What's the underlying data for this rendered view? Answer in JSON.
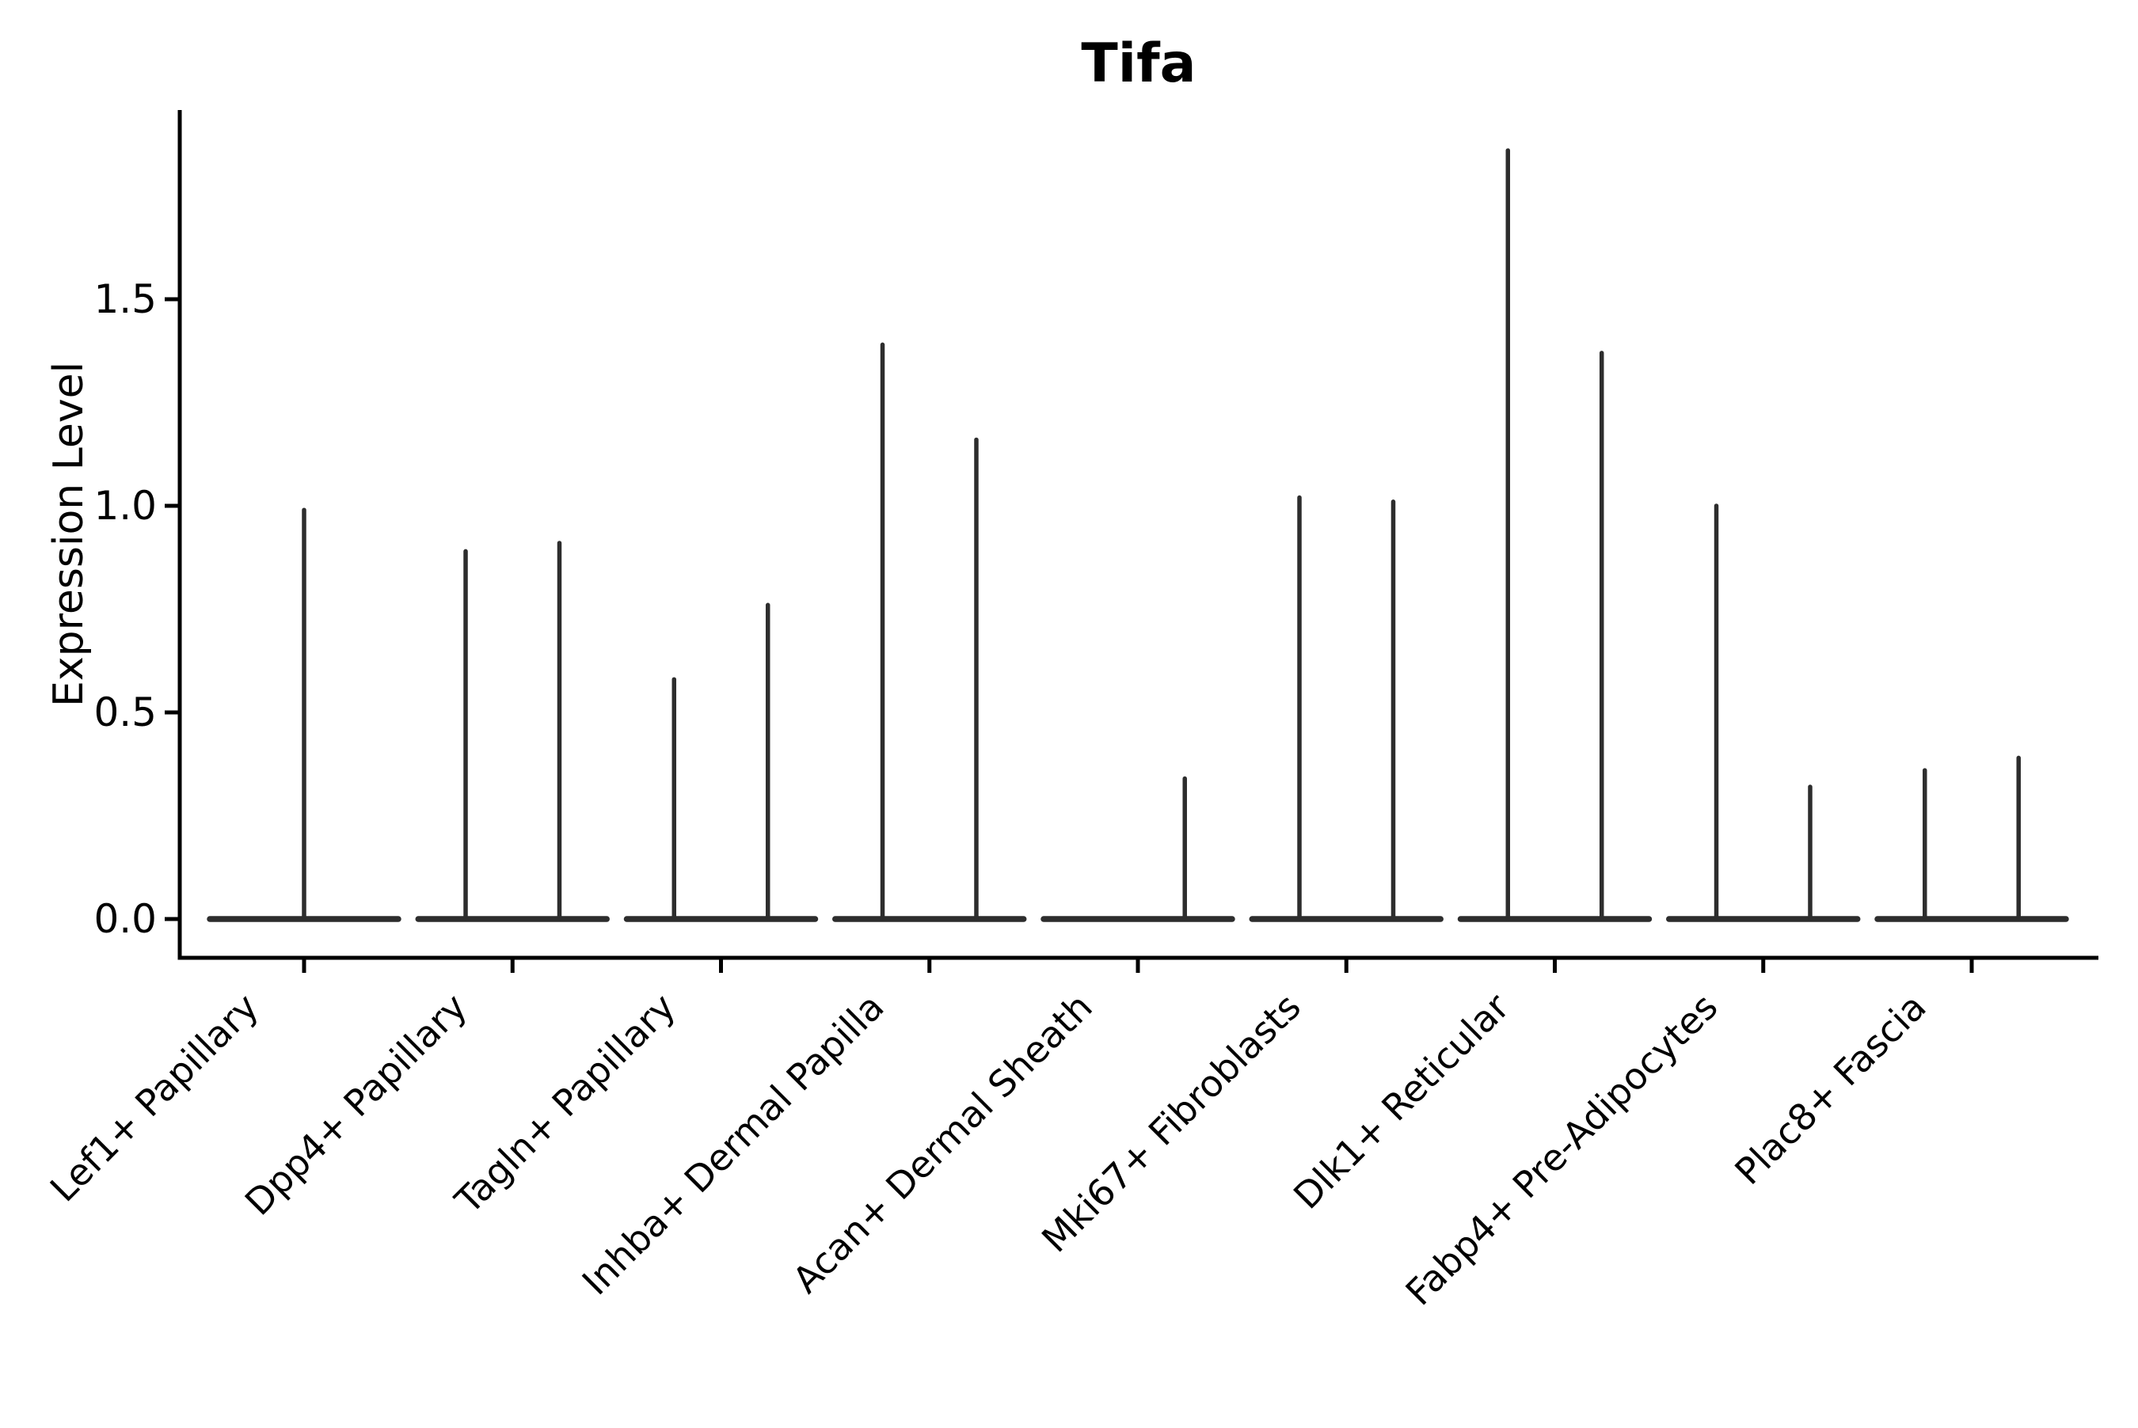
{
  "title": "Tifa",
  "y_axis": {
    "label": "Expression Level",
    "tick_labels": [
      "0.0",
      "0.5",
      "1.0",
      "1.5"
    ],
    "tick_values": [
      0.0,
      0.5,
      1.0,
      1.5
    ]
  },
  "colors": {
    "background": "#ffffff",
    "axis": "#000000",
    "text": "#000000",
    "violin_stroke": "#2d2d2d"
  },
  "chart_data": {
    "type": "violin",
    "title": "Tifa",
    "xlabel": "",
    "ylabel": "Expression Level",
    "ylim": [
      -0.094,
      1.954
    ],
    "yticks": [
      0.0,
      0.5,
      1.0,
      1.5
    ],
    "grid": false,
    "legend": null,
    "x_tick_rotation": 45,
    "baseline_value": 0.0,
    "baseline_half_width": 0.452,
    "description": "Violin plot of gene Tifa expression per fibroblast cell-type cluster; each violin collapses to a flat line at 0 with thin spikes rising to the maximum expressed value (two dodged spikes per category where two groups are present).",
    "categories": [
      "Lef1+ Papillary",
      "Dpp4+ Papillary",
      "Tagln+ Papillary",
      "Inhba+ Dermal Papilla",
      "Acan+ Dermal Sheath",
      "Mki67+ Fibroblasts",
      "Dlk1+ Reticular",
      "Fabp4+ Pre-Adipocytes",
      "Plac8+ Fascia"
    ],
    "violins": [
      {
        "category": "Lef1+ Papillary",
        "spikes": [
          {
            "offset": 0.0,
            "max": 0.99
          }
        ]
      },
      {
        "category": "Dpp4+ Papillary",
        "spikes": [
          {
            "offset": -0.225,
            "max": 0.89
          },
          {
            "offset": 0.225,
            "max": 0.91
          }
        ]
      },
      {
        "category": "Tagln+ Papillary",
        "spikes": [
          {
            "offset": -0.225,
            "max": 0.58
          },
          {
            "offset": 0.225,
            "max": 0.76
          }
        ]
      },
      {
        "category": "Inhba+ Dermal Papilla",
        "spikes": [
          {
            "offset": -0.225,
            "max": 1.39
          },
          {
            "offset": 0.225,
            "max": 1.16
          }
        ]
      },
      {
        "category": "Acan+ Dermal Sheath",
        "spikes": [
          {
            "offset": 0.225,
            "max": 0.34
          }
        ]
      },
      {
        "category": "Mki67+ Fibroblasts",
        "spikes": [
          {
            "offset": -0.225,
            "max": 1.02
          },
          {
            "offset": 0.225,
            "max": 1.01
          }
        ]
      },
      {
        "category": "Dlk1+ Reticular",
        "spikes": [
          {
            "offset": -0.225,
            "max": 1.86
          },
          {
            "offset": 0.225,
            "max": 1.37
          }
        ]
      },
      {
        "category": "Fabp4+ Pre-Adipocytes",
        "spikes": [
          {
            "offset": -0.225,
            "max": 1.0
          },
          {
            "offset": 0.225,
            "max": 0.32
          }
        ]
      },
      {
        "category": "Plac8+ Fascia",
        "spikes": [
          {
            "offset": -0.225,
            "max": 0.36
          },
          {
            "offset": 0.225,
            "max": 0.39
          }
        ]
      }
    ]
  }
}
